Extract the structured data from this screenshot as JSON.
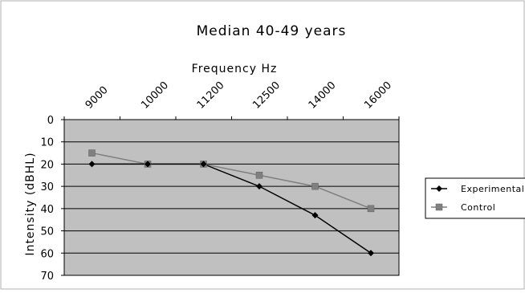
{
  "chart_data": {
    "type": "line",
    "title": "Median 40-49 years",
    "xlabel": "Frequency Hz",
    "ylabel": "Intensity (dBHL)",
    "categories": [
      "9000",
      "10000",
      "11200",
      "12500",
      "14000",
      "16000"
    ],
    "x_axis_position": "top",
    "y_axis_inverted": true,
    "ylim": [
      0,
      70
    ],
    "yticks": [
      0,
      10,
      20,
      30,
      40,
      50,
      60,
      70
    ],
    "grid": "horizontal",
    "plot_background": "#c0c0c0",
    "legend_position": "right",
    "series": [
      {
        "name": "Experimental",
        "values": [
          20,
          20,
          20,
          30,
          43,
          60
        ],
        "color": "#000000",
        "marker": "diamond"
      },
      {
        "name": "Control",
        "values": [
          15,
          20,
          20,
          25,
          30,
          40
        ],
        "color": "#808080",
        "marker": "square"
      }
    ]
  }
}
